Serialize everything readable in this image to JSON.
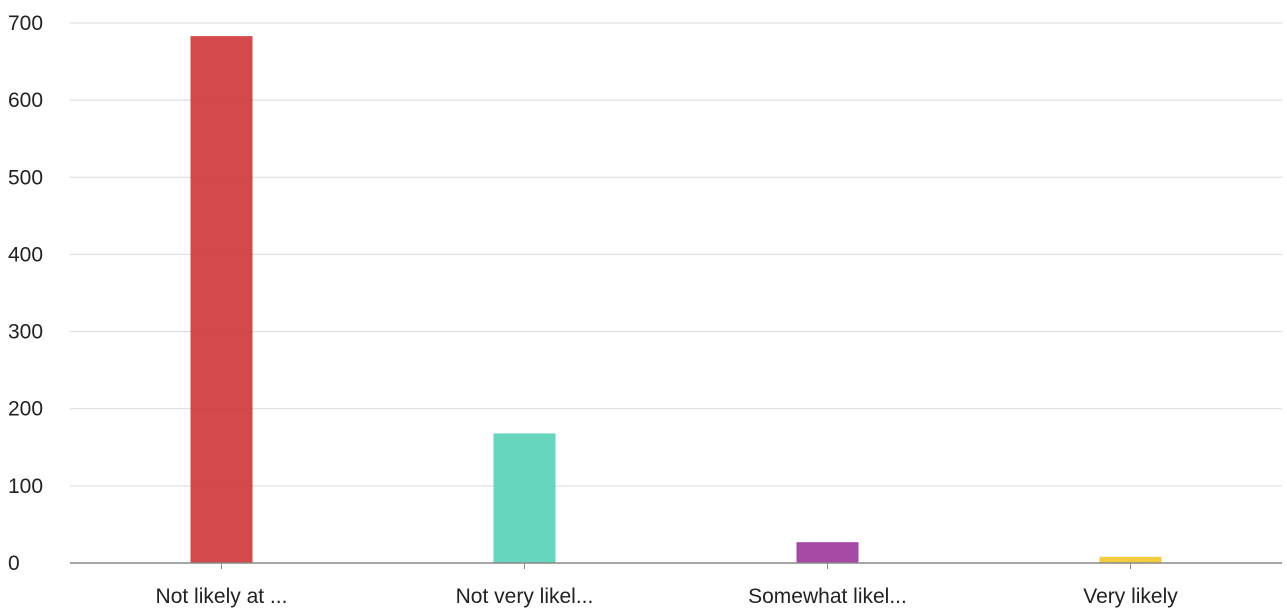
{
  "chart_data": {
    "type": "bar",
    "title": "",
    "xlabel": "",
    "ylabel": "",
    "categories": [
      "Not likely at ...",
      "Not very likel...",
      "Somewhat likel...",
      "Very likely"
    ],
    "values": [
      683,
      168,
      27,
      8
    ],
    "colors": [
      "#d0393c",
      "#5ad3b8",
      "#9c3a9c",
      "#f2c82c"
    ],
    "ylim": [
      0,
      700
    ],
    "yticks": [
      0,
      100,
      200,
      300,
      400,
      500,
      600,
      700
    ],
    "grid": true,
    "legend": "none"
  }
}
